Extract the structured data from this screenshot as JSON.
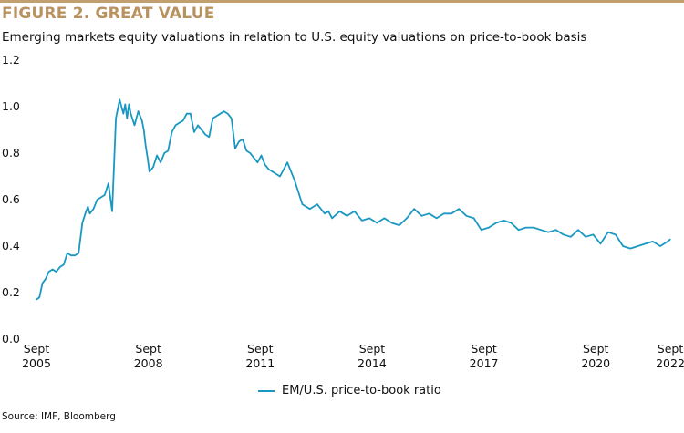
{
  "header": {
    "title": "FIGURE 2. GREAT VALUE",
    "subtitle": "Emerging markets equity valuations in relation to U.S. equity valuations on price-to-book basis"
  },
  "footer": {
    "source": "Source: IMF, Bloomberg"
  },
  "colors": {
    "accent": "#c29f6e",
    "title": "#b8935f",
    "line": "#1a98c2"
  },
  "chart_data": {
    "type": "line",
    "title": "FIGURE 2. GREAT VALUE",
    "subtitle": "Emerging markets equity valuations in relation to U.S. equity valuations on price-to-book basis",
    "xlabel": "",
    "ylabel": "",
    "ylim": [
      0.0,
      1.2
    ],
    "xlim": [
      2005.67,
      2022.67
    ],
    "grid": false,
    "legend_position": "bottom-center",
    "y_ticks": [
      "0.0",
      "0.2",
      "0.4",
      "0.6",
      "0.8",
      "1.0",
      "1.2"
    ],
    "y_tick_values": [
      0.0,
      0.2,
      0.4,
      0.6,
      0.8,
      1.0,
      1.2
    ],
    "x_ticks": [
      {
        "value": 2005.67,
        "line1": "Sept",
        "line2": "2005"
      },
      {
        "value": 2008.67,
        "line1": "Sept",
        "line2": "2008"
      },
      {
        "value": 2011.67,
        "line1": "Sept",
        "line2": "2011"
      },
      {
        "value": 2014.67,
        "line1": "Sept",
        "line2": "2014"
      },
      {
        "value": 2017.67,
        "line1": "Sept",
        "line2": "2017"
      },
      {
        "value": 2020.67,
        "line1": "Sept",
        "line2": "2020"
      },
      {
        "value": 2022.67,
        "line1": "Sept",
        "line2": "2022"
      }
    ],
    "series": [
      {
        "name": "EM/U.S. price-to-book ratio",
        "color": "#1a98c2",
        "x": [
          2005.67,
          2005.75,
          2005.83,
          2005.92,
          2006.0,
          2006.1,
          2006.2,
          2006.3,
          2006.4,
          2006.5,
          2006.6,
          2006.7,
          2006.8,
          2006.9,
          2007.0,
          2007.05,
          2007.1,
          2007.2,
          2007.3,
          2007.4,
          2007.5,
          2007.6,
          2007.7,
          2007.8,
          2007.9,
          2008.0,
          2008.05,
          2008.1,
          2008.15,
          2008.2,
          2008.3,
          2008.4,
          2008.5,
          2008.55,
          2008.6,
          2008.65,
          2008.7,
          2008.8,
          2008.9,
          2009.0,
          2009.1,
          2009.2,
          2009.3,
          2009.4,
          2009.5,
          2009.6,
          2009.7,
          2009.8,
          2009.9,
          2010.0,
          2010.1,
          2010.2,
          2010.3,
          2010.4,
          2010.5,
          2010.6,
          2010.7,
          2010.8,
          2010.9,
          2011.0,
          2011.1,
          2011.2,
          2011.3,
          2011.4,
          2011.5,
          2011.6,
          2011.7,
          2011.8,
          2011.9,
          2012.0,
          2012.2,
          2012.4,
          2012.6,
          2012.8,
          2013.0,
          2013.2,
          2013.4,
          2013.5,
          2013.6,
          2013.8,
          2014.0,
          2014.2,
          2014.4,
          2014.6,
          2014.8,
          2015.0,
          2015.2,
          2015.4,
          2015.6,
          2015.8,
          2016.0,
          2016.2,
          2016.4,
          2016.6,
          2016.8,
          2017.0,
          2017.2,
          2017.4,
          2017.6,
          2017.8,
          2018.0,
          2018.2,
          2018.4,
          2018.6,
          2018.8,
          2019.0,
          2019.2,
          2019.4,
          2019.6,
          2019.8,
          2020.0,
          2020.2,
          2020.4,
          2020.6,
          2020.8,
          2021.0,
          2021.2,
          2021.4,
          2021.6,
          2021.8,
          2022.0,
          2022.2,
          2022.4,
          2022.6,
          2022.67
        ],
        "values": [
          0.17,
          0.18,
          0.24,
          0.26,
          0.29,
          0.3,
          0.29,
          0.31,
          0.32,
          0.37,
          0.36,
          0.36,
          0.37,
          0.5,
          0.55,
          0.57,
          0.54,
          0.56,
          0.6,
          0.61,
          0.62,
          0.67,
          0.55,
          0.95,
          1.03,
          0.97,
          1.01,
          0.95,
          1.01,
          0.97,
          0.92,
          0.98,
          0.94,
          0.9,
          0.83,
          0.78,
          0.72,
          0.74,
          0.79,
          0.76,
          0.8,
          0.81,
          0.89,
          0.92,
          0.93,
          0.94,
          0.97,
          0.97,
          0.89,
          0.92,
          0.9,
          0.88,
          0.87,
          0.95,
          0.96,
          0.97,
          0.98,
          0.97,
          0.95,
          0.82,
          0.85,
          0.86,
          0.81,
          0.8,
          0.78,
          0.76,
          0.79,
          0.75,
          0.73,
          0.72,
          0.7,
          0.76,
          0.68,
          0.58,
          0.56,
          0.58,
          0.54,
          0.55,
          0.52,
          0.55,
          0.53,
          0.55,
          0.51,
          0.52,
          0.5,
          0.52,
          0.5,
          0.49,
          0.52,
          0.56,
          0.53,
          0.54,
          0.52,
          0.54,
          0.54,
          0.56,
          0.53,
          0.52,
          0.47,
          0.48,
          0.5,
          0.51,
          0.5,
          0.47,
          0.48,
          0.48,
          0.47,
          0.46,
          0.47,
          0.45,
          0.44,
          0.47,
          0.44,
          0.45,
          0.41,
          0.46,
          0.45,
          0.4,
          0.39,
          0.4,
          0.41,
          0.42,
          0.4,
          0.42,
          0.43
        ]
      }
    ]
  }
}
